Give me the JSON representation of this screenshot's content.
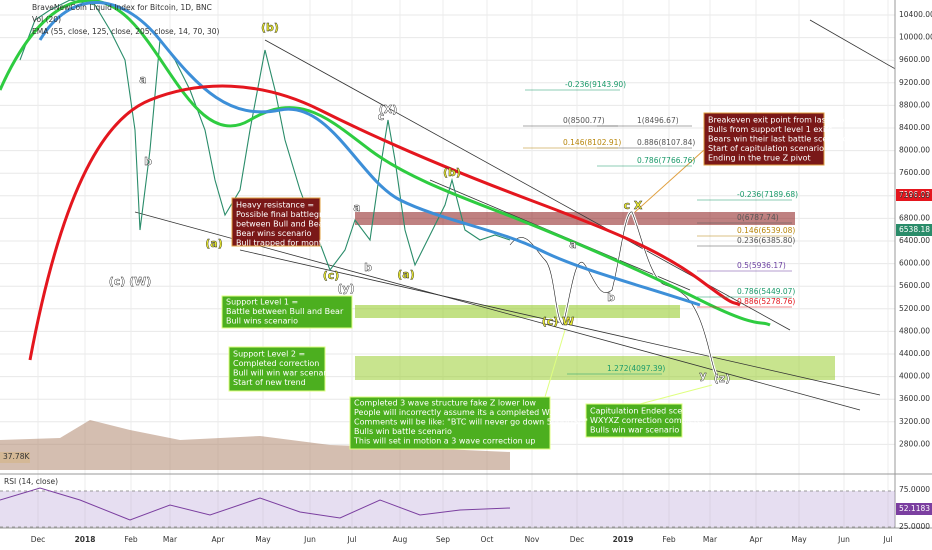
{
  "header": {
    "title": "BraveNewCoin Liquid Index for Bitcoin, 1D, BNC",
    "volume": "Vol (20)",
    "ema": "EMA (55, close, 125, close, 205, close, 14, 70, 30)"
  },
  "price_axis": [
    "10400.00",
    "10000.00",
    "9600.00",
    "9200.00",
    "8800.00",
    "8400.00",
    "8000.00",
    "7600.00",
    "7200.00",
    "6800.00",
    "6400.00",
    "6000.00",
    "5600.00",
    "5200.00",
    "4800.00",
    "4400.00",
    "4000.00",
    "3600.00",
    "3200.00",
    "2800.00"
  ],
  "price_badges": {
    "last": "7196.03",
    "support": "6538.18",
    "volume": "37.78K"
  },
  "time_axis": [
    "Dec",
    "2018",
    "Feb",
    "Mar",
    "Apr",
    "May",
    "Jun",
    "Jul",
    "Aug",
    "Sep",
    "Oct",
    "Nov",
    "Dec",
    "2019",
    "Feb",
    "Mar",
    "Apr",
    "May",
    "Jun",
    "Jul"
  ],
  "rsi": {
    "title": "RSI (14, close)",
    "upper": "75.0000",
    "lower": "25.0000",
    "value": "52.1183"
  },
  "annotations": {
    "heavy_resistance": [
      "Heavy resistance =",
      "Possible final battleground",
      "between Bull and Bear",
      "Bear wins scenario",
      "Bull trapped for months"
    ],
    "support_1": [
      "Support Level 1 =",
      "Battle between Bull and Bear",
      "Bull wins scenario"
    ],
    "support_2": [
      "Support Level 2 =",
      "Completed correction",
      "Bull will win war scenario",
      "Start of new trend"
    ],
    "fake_low": [
      "Completed 3 wave structure fake Z lower low",
      "People will incorrectly assume its a completed WXYXZ",
      "Comments will be like: \"BTC will never go down 5000USD\"",
      "Bulls win battle scenario",
      "This will set in motion a 3 wave correction up"
    ],
    "breakeven": [
      "Breakeven exit point from last drop",
      "Bulls from support level 1 exits",
      "Bears win their last battle scenario",
      "Start of capitulation scenario",
      "Ending in the true Z pivot"
    ],
    "capitulation": [
      "Capitulation Ended scenario",
      "WXYXZ correction completed",
      "Bulls win war scenario"
    ]
  },
  "fib_labels": [
    "-0.236(9143.90)",
    "0(8500.77)",
    "1(8496.67)",
    "0.886(8107.84)",
    "0.146(8102.91)",
    "0.786(7766.76)",
    "-0.236(7189.68)",
    "0(6787.74)",
    "0.146(6539.08)",
    "0.236(6385.80)",
    "0.5(5936.17)",
    "0.786(5449.07)",
    "0.886(5278.76)",
    "1.272(4097.39)"
  ],
  "wave_labels": [
    "(b)",
    "a",
    "b",
    "(c) (W)",
    "(a)",
    "(X)",
    "c",
    "a",
    "b",
    "(c)",
    "(y)",
    "(b)",
    "(a)",
    "a",
    "b",
    "(c) W",
    "c X",
    "y",
    "(z)"
  ]
}
